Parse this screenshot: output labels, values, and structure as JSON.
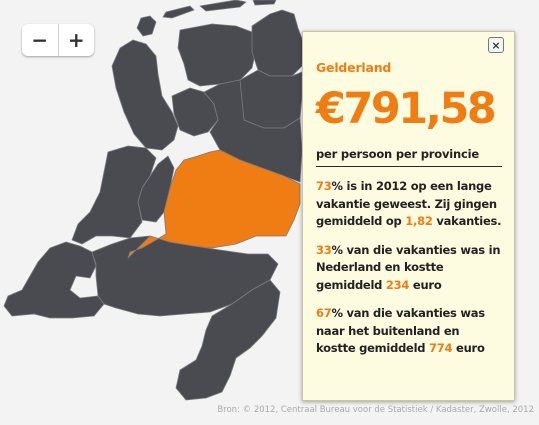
{
  "zoom": {
    "minus_label": "−",
    "plus_label": "+"
  },
  "map": {
    "land_color": "#4a4b50",
    "highlight_color": "#f07d13",
    "water_color": "#f3f3f3",
    "border_color": "#7a7b80",
    "selected_region": "Gelderland"
  },
  "panel": {
    "close_label": "×",
    "province": "Gelderland",
    "amount": "€791,58",
    "subtitle": "per persoon per provincie",
    "paragraphs": [
      [
        {
          "text": "73",
          "hl": true
        },
        {
          "text": "% is in 2012 op een lange vakantie geweest. Zij gingen gemiddeld op ",
          "hl": false
        },
        {
          "text": "1,82",
          "hl": true
        },
        {
          "text": " vakanties.",
          "hl": false
        }
      ],
      [
        {
          "text": "33",
          "hl": true
        },
        {
          "text": "% van die vakanties was in Nederland en kostte gemiddeld ",
          "hl": false
        },
        {
          "text": "234",
          "hl": true
        },
        {
          "text": " euro",
          "hl": false
        }
      ],
      [
        {
          "text": "67",
          "hl": true
        },
        {
          "text": "% van die vakanties was naar het buitenland en kostte gemiddeld ",
          "hl": false
        },
        {
          "text": "774",
          "hl": true
        },
        {
          "text": " euro",
          "hl": false
        }
      ]
    ]
  },
  "source": "Bron: © 2012, Centraal Bureau voor de Statistiek / Kadaster, Zwolle, 2012"
}
